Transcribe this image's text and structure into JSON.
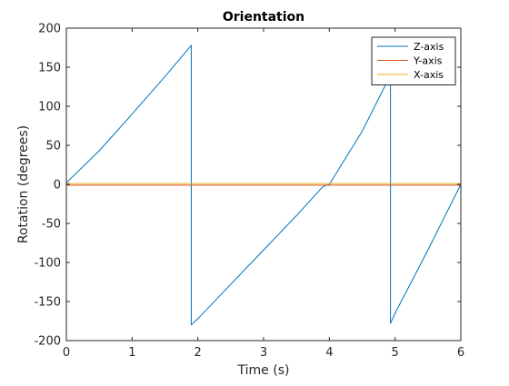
{
  "chart_data": {
    "type": "line",
    "title": "Orientation",
    "xlabel": "Time (s)",
    "ylabel": "Rotation (degrees)",
    "xlim": [
      0,
      6
    ],
    "ylim": [
      -200,
      200
    ],
    "xticks": [
      0,
      1,
      2,
      3,
      4,
      5,
      6
    ],
    "xtick_labels": [
      "0",
      "1",
      "2",
      "3",
      "4",
      "5",
      "6"
    ],
    "yticks": [
      -200,
      -150,
      -100,
      -50,
      0,
      50,
      100,
      150,
      200
    ],
    "ytick_labels": [
      "-200",
      "-150",
      "-100",
      "-50",
      "0",
      "50",
      "100",
      "150",
      "200"
    ],
    "grid": false,
    "legend": {
      "placement": "top-right"
    },
    "series": [
      {
        "name": "Z-axis",
        "color": "#0072BD",
        "x": [
          0,
          0.5,
          1.0,
          1.5,
          1.9,
          1.9,
          2.0,
          2.5,
          3.0,
          3.5,
          3.9,
          4.0,
          4.5,
          4.93,
          4.93,
          5.0,
          5.5,
          6.0
        ],
        "y": [
          2,
          43,
          90,
          138,
          178,
          -180,
          -172,
          -128,
          -84,
          -40,
          -3,
          0,
          68,
          140,
          -178,
          -165,
          -84,
          0
        ]
      },
      {
        "name": "Y-axis",
        "color": "#D95319",
        "x": [
          0,
          6
        ],
        "y": [
          -1,
          -1
        ]
      },
      {
        "name": "X-axis",
        "color": "#EDB120",
        "x": [
          0,
          6
        ],
        "y": [
          1,
          1
        ]
      }
    ]
  }
}
